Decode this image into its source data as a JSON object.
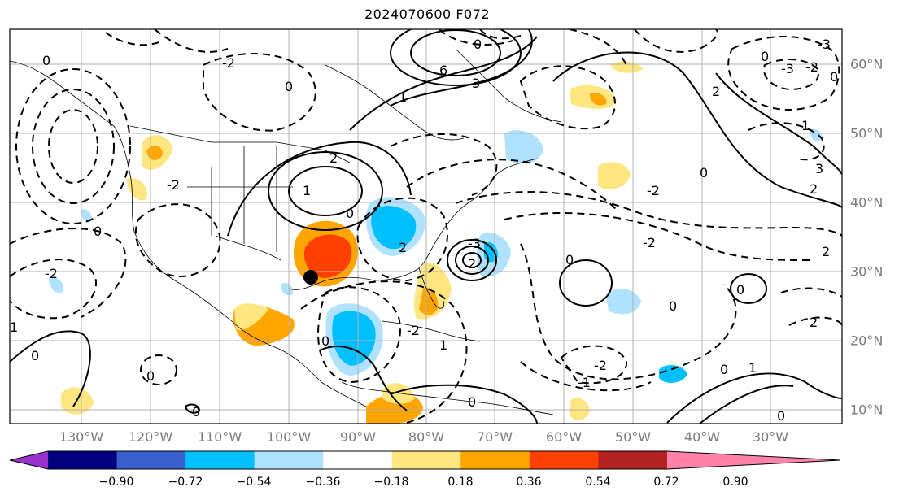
{
  "title": "2024070600 F072",
  "lon_labels": [
    "130°W",
    "120°W",
    "110°W",
    "100°W",
    "90°W",
    "80°W",
    "70°W",
    "60°W",
    "50°W",
    "40°W",
    "30°W"
  ],
  "lat_labels": [
    "60°N",
    "50°N",
    "40°N",
    "30°N",
    "20°N",
    "10°N"
  ],
  "colorbar": {
    "tick_labels": [
      "−0.90",
      "−0.72",
      "−0.54",
      "−0.36",
      "−0.18",
      "0.18",
      "0.36",
      "0.54",
      "0.72",
      "0.90"
    ],
    "colors": [
      "#9932cc",
      "#000080",
      "#3a5fcd",
      "#00bfff",
      "#b0e2ff",
      "#ffffff",
      "#ffe680",
      "#ffa500",
      "#ff4000",
      "#b22222",
      "#ff82ab"
    ]
  },
  "contour_labels": [
    "-3",
    "-2",
    "-1",
    "0",
    "1",
    "2",
    "3",
    "6"
  ],
  "marker": "black-dot-texas-coast"
}
